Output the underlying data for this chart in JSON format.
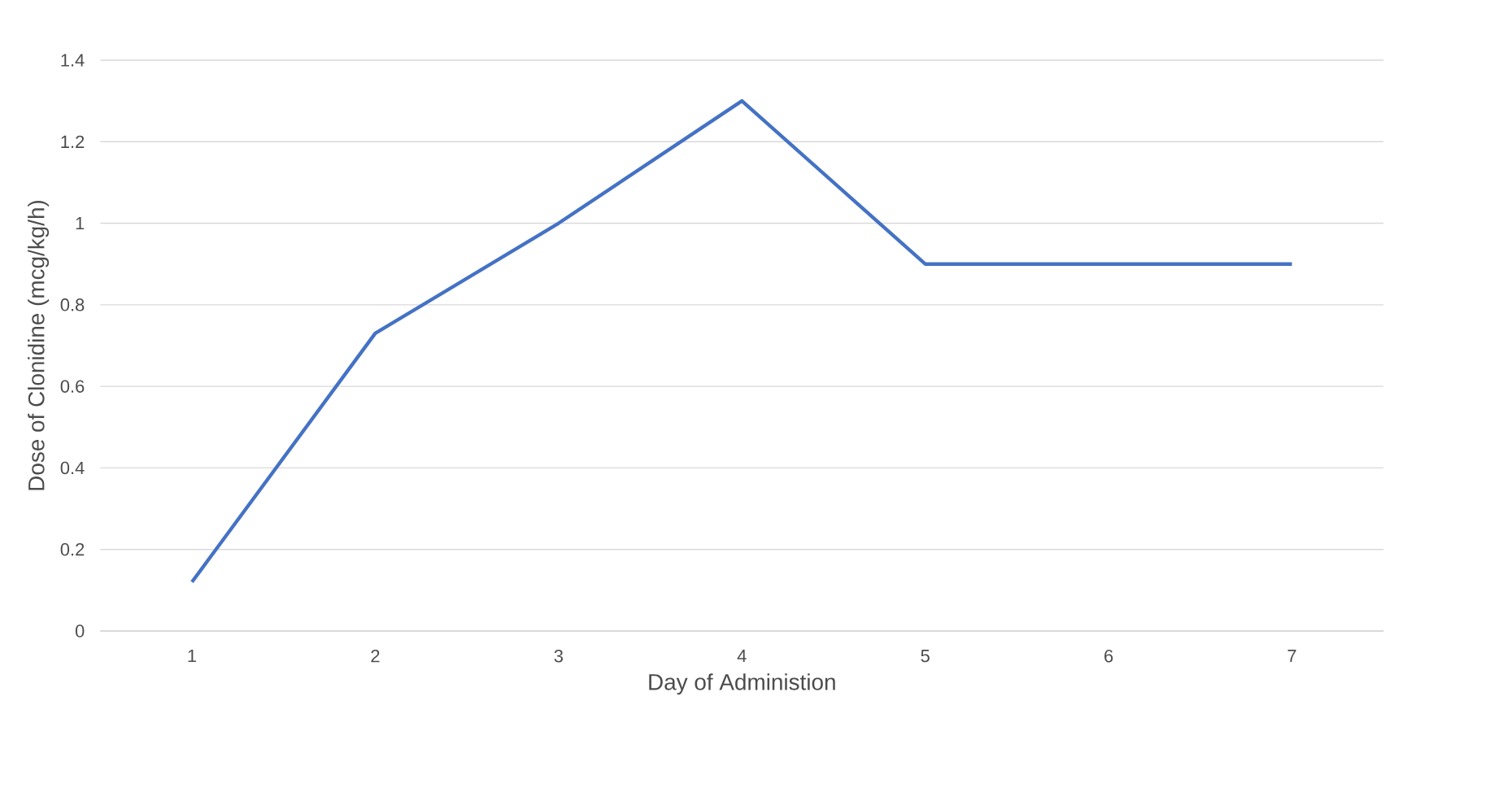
{
  "chart_data": {
    "type": "line",
    "xlabel": "Day of Administion",
    "ylabel": "Dose of Clonidine (mcg/kg/h)",
    "categories": [
      "1",
      "2",
      "3",
      "4",
      "5",
      "6",
      "7"
    ],
    "series": [
      {
        "color": "#4472c4",
        "values": [
          0.12,
          0.73,
          1.0,
          1.3,
          0.9,
          0.9,
          0.9
        ]
      }
    ],
    "ylim": [
      0,
      1.4
    ],
    "yticks": [
      0,
      0.2,
      0.4,
      0.6,
      0.8,
      1,
      1.2,
      1.4
    ],
    "grid": "y",
    "legend": false,
    "marker": "none",
    "line_style": "solid"
  }
}
